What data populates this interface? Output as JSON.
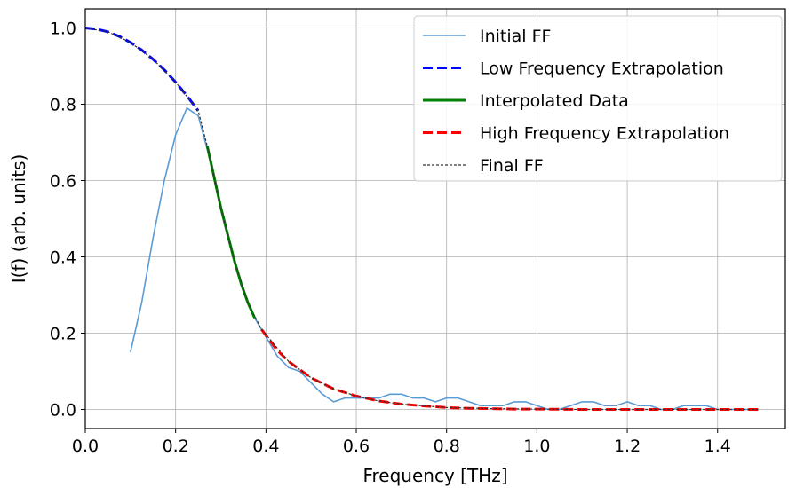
{
  "chart_data": {
    "type": "line",
    "xlabel": "Frequency [THz]",
    "ylabel": "I(f) (arb. units)",
    "xlim": [
      0.0,
      1.55
    ],
    "ylim": [
      -0.05,
      1.05
    ],
    "xticks": [
      "0.0",
      "0.2",
      "0.4",
      "0.6",
      "0.8",
      "1.0",
      "1.2",
      "1.4"
    ],
    "xtick_values": [
      0.0,
      0.2,
      0.4,
      0.6,
      0.8,
      1.0,
      1.2,
      1.4
    ],
    "yticks": [
      "0.0",
      "0.2",
      "0.4",
      "0.6",
      "0.8",
      "1.0"
    ],
    "ytick_values": [
      0.0,
      0.2,
      0.4,
      0.6,
      0.8,
      1.0
    ],
    "grid": true,
    "legend_position": "top-right",
    "series": [
      {
        "name": "Initial FF",
        "color": "#5b9bd5",
        "style": "solid",
        "x": [
          0.1,
          0.125,
          0.15,
          0.175,
          0.2,
          0.225,
          0.25,
          0.275,
          0.3,
          0.325,
          0.35,
          0.375,
          0.4,
          0.425,
          0.45,
          0.475,
          0.5,
          0.525,
          0.55,
          0.575,
          0.6,
          0.625,
          0.65,
          0.675,
          0.7,
          0.725,
          0.75,
          0.775,
          0.8,
          0.825,
          0.85,
          0.875,
          0.9,
          0.925,
          0.95,
          0.975,
          1.0,
          1.025,
          1.05,
          1.075,
          1.1,
          1.125,
          1.15,
          1.175,
          1.2,
          1.225,
          1.25,
          1.275,
          1.3,
          1.325,
          1.35,
          1.375,
          1.4,
          1.425,
          1.45,
          1.475
        ],
        "y": [
          0.15,
          0.28,
          0.45,
          0.6,
          0.72,
          0.79,
          0.77,
          0.66,
          0.53,
          0.41,
          0.31,
          0.24,
          0.19,
          0.14,
          0.11,
          0.1,
          0.07,
          0.04,
          0.02,
          0.03,
          0.03,
          0.03,
          0.03,
          0.04,
          0.04,
          0.03,
          0.03,
          0.02,
          0.03,
          0.03,
          0.02,
          0.01,
          0.01,
          0.01,
          0.02,
          0.02,
          0.01,
          0.0,
          0.0,
          0.01,
          0.02,
          0.02,
          0.01,
          0.01,
          0.02,
          0.01,
          0.01,
          0.0,
          0.0,
          0.01,
          0.01,
          0.01,
          0.0,
          0.0,
          0.0,
          0.0
        ]
      },
      {
        "name": "Low Frequency Extrapolation",
        "color": "#0000ff",
        "style": "dashed",
        "x": [
          0.0,
          0.025,
          0.05,
          0.075,
          0.1,
          0.125,
          0.15,
          0.175,
          0.2,
          0.225,
          0.25
        ],
        "y": [
          1.0,
          0.997,
          0.99,
          0.978,
          0.962,
          0.942,
          0.918,
          0.89,
          0.858,
          0.822,
          0.783
        ]
      },
      {
        "name": "Interpolated Data",
        "color": "#008000",
        "style": "solid",
        "x": [
          0.27,
          0.285,
          0.3,
          0.315,
          0.33,
          0.345,
          0.36,
          0.375
        ],
        "y": [
          0.69,
          0.61,
          0.53,
          0.46,
          0.39,
          0.33,
          0.28,
          0.24
        ]
      },
      {
        "name": "High Frequency Extrapolation",
        "color": "#ff0000",
        "style": "dashed",
        "x": [
          0.39,
          0.425,
          0.45,
          0.5,
          0.55,
          0.6,
          0.65,
          0.7,
          0.75,
          0.8,
          0.85,
          0.9,
          0.95,
          1.0,
          1.1,
          1.2,
          1.3,
          1.4,
          1.49
        ],
        "y": [
          0.21,
          0.155,
          0.126,
          0.083,
          0.054,
          0.035,
          0.022,
          0.014,
          0.009,
          0.005,
          0.003,
          0.002,
          0.001,
          0.001,
          0.0,
          0.0,
          0.0,
          0.0,
          0.0
        ]
      },
      {
        "name": "Final FF",
        "color": "#333333",
        "style": "dotted",
        "x": [
          0.0,
          0.05,
          0.1,
          0.15,
          0.2,
          0.25,
          0.27,
          0.3,
          0.33,
          0.36,
          0.39,
          0.45,
          0.5,
          0.55,
          0.6,
          0.65,
          0.7,
          0.8,
          0.9,
          1.0,
          1.1,
          1.2,
          1.3,
          1.4,
          1.49
        ],
        "y": [
          1.0,
          0.99,
          0.962,
          0.918,
          0.858,
          0.783,
          0.69,
          0.53,
          0.39,
          0.28,
          0.21,
          0.126,
          0.083,
          0.054,
          0.035,
          0.022,
          0.014,
          0.005,
          0.002,
          0.001,
          0.0,
          0.0,
          0.0,
          0.0,
          0.0
        ]
      }
    ]
  }
}
